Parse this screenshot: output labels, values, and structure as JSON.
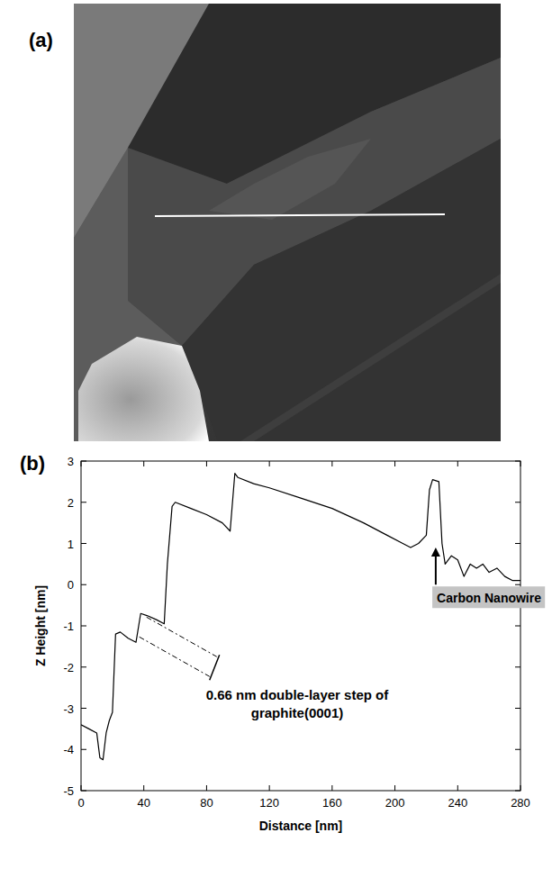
{
  "figure": {
    "panel_labels": [
      "(a)",
      "(b)"
    ]
  },
  "chart_data": {
    "type": "line",
    "x_label": "Distance  [nm]",
    "y_label": "Z Height  [nm]",
    "color": "#000000",
    "x": [
      0,
      5,
      10,
      12,
      14,
      16,
      18,
      20,
      22,
      25,
      30,
      35,
      38,
      42,
      48,
      53,
      55,
      58,
      60,
      70,
      80,
      90,
      95,
      98,
      100,
      110,
      120,
      140,
      160,
      180,
      195,
      205,
      210,
      215,
      220,
      222,
      224,
      228,
      230,
      232,
      236,
      240,
      244,
      248,
      252,
      256,
      260,
      265,
      270,
      275,
      280
    ],
    "values": [
      -3.4,
      -3.5,
      -3.6,
      -4.2,
      -4.25,
      -3.6,
      -3.3,
      -3.1,
      -1.2,
      -1.15,
      -1.3,
      -1.4,
      -0.7,
      -0.75,
      -0.85,
      -0.95,
      0.5,
      1.9,
      2.0,
      1.85,
      1.7,
      1.5,
      1.3,
      2.7,
      2.6,
      2.45,
      2.35,
      2.1,
      1.85,
      1.5,
      1.2,
      1.0,
      0.9,
      1.0,
      1.2,
      2.3,
      2.55,
      2.5,
      1.0,
      0.5,
      0.7,
      0.6,
      0.2,
      0.5,
      0.4,
      0.5,
      0.3,
      0.4,
      0.2,
      0.1,
      0.1
    ],
    "xlim": [
      0,
      280
    ],
    "xticks": [
      0,
      40,
      80,
      120,
      160,
      200,
      240,
      280
    ],
    "ylim": [
      -5,
      3
    ],
    "yticks": [
      -5,
      -4,
      -3,
      -2,
      -1,
      0,
      1,
      2,
      3
    ],
    "annotations": [
      {
        "text": "Carbon Nanowire",
        "x": 226,
        "y": 0.9
      },
      {
        "text": "0.66 nm double-layer step of graphite(0001)",
        "x": 40,
        "y": -0.7
      }
    ]
  }
}
